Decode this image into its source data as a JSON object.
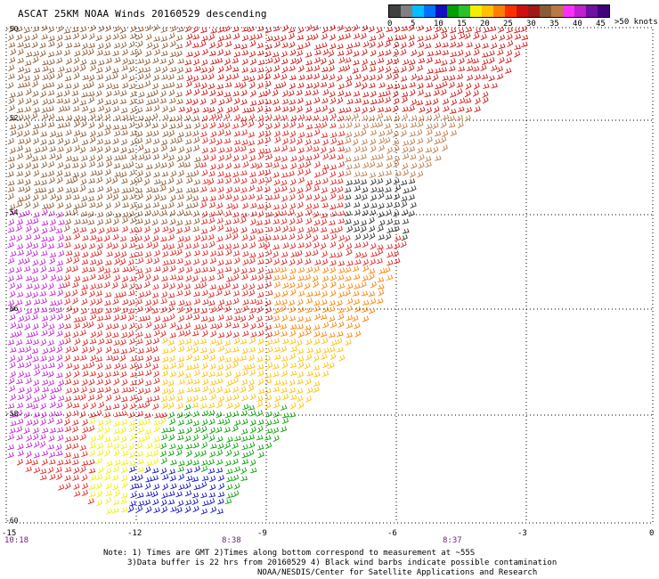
{
  "title": "ASCAT 25KM NOAA Winds 20160529 descending",
  "legend": {
    "units": ">50 knots",
    "colors": [
      "#404040",
      "#808080",
      "#00c0ff",
      "#0070ff",
      "#1010c0",
      "#00a000",
      "#2cc02c",
      "#f0f000",
      "#ffc000",
      "#ff8000",
      "#ff3000",
      "#d01010",
      "#a01818",
      "#8a5a36",
      "#b87848",
      "#ff30ff",
      "#c020d0",
      "#7010a0",
      "#40007a"
    ],
    "ticks": [
      "0",
      "5",
      "10",
      "15",
      "20",
      "25",
      "30",
      "35",
      "40",
      "45"
    ]
  },
  "axes": {
    "lat_labels": [
      "-50",
      "-52",
      "-54",
      "-56",
      "-58",
      "-60"
    ],
    "lon_labels": [
      "-15",
      "-12",
      "-9",
      "-6",
      "-3",
      "0"
    ]
  },
  "times": [
    "10:18",
    "8:38",
    "8:37"
  ],
  "notes": {
    "line1": "Note: 1) Times are GMT 2)Times along bottom correspond to measurement at ~55S",
    "line2": "3)Data buffer is 22 hrs from 20160529 4) Black wind barbs indicate possible contamination"
  },
  "credit": "NOAA/NESDIS/Center for Satellite Applications and Research"
}
